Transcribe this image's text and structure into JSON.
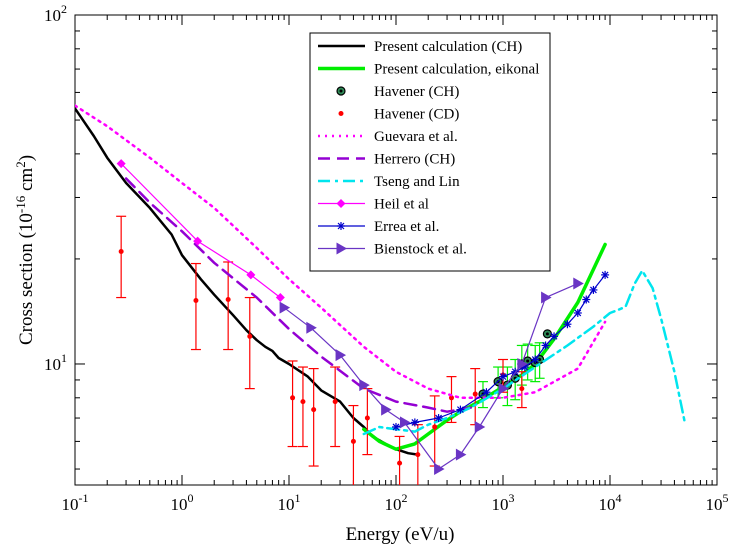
{
  "chart_data": {
    "type": "line",
    "xscale": "log",
    "yscale": "log",
    "xlim": [
      0.1,
      100000
    ],
    "ylim": [
      4.5,
      100
    ],
    "xlabel": "Energy (eV/u)",
    "ylabel_main": "Cross section (10",
    "ylabel_exp1": "-16",
    "ylabel_mid": " cm",
    "ylabel_exp2": "2",
    "ylabel_end": ")",
    "x_ticks": [
      {
        "v": 0.1,
        "base": "10",
        "exp": "-1"
      },
      {
        "v": 1,
        "base": "10",
        "exp": "0"
      },
      {
        "v": 10,
        "base": "10",
        "exp": "1"
      },
      {
        "v": 100,
        "base": "10",
        "exp": "2"
      },
      {
        "v": 1000,
        "base": "10",
        "exp": "3"
      },
      {
        "v": 10000,
        "base": "10",
        "exp": "4"
      },
      {
        "v": 100000,
        "base": "10",
        "exp": "5"
      }
    ],
    "y_ticks": [
      {
        "v": 10,
        "base": "10",
        "exp": "1"
      },
      {
        "v": 100,
        "base": "10",
        "exp": "2"
      }
    ],
    "series": [
      {
        "name": "Present calculation (CH)",
        "color": "#000000",
        "style": "solid",
        "width": 2.5,
        "marker": "none",
        "x": [
          0.1,
          0.15,
          0.2,
          0.3,
          0.5,
          0.8,
          1.0,
          1.5,
          2,
          3,
          4,
          5,
          6,
          7,
          8,
          10,
          15,
          20,
          30,
          40,
          50,
          60,
          80,
          100,
          130,
          160
        ],
        "y": [
          54,
          45,
          39,
          33,
          28,
          23.5,
          20.5,
          17.5,
          15.8,
          13.8,
          12.5,
          11.7,
          11.2,
          10.9,
          10.4,
          10.0,
          9.2,
          8.4,
          7.8,
          7.0,
          6.6,
          6.2,
          5.9,
          5.7,
          5.55,
          5.5
        ]
      },
      {
        "name": "Present calculation, eikonal",
        "color": "#00ee00",
        "style": "solid",
        "width": 3.5,
        "marker": "none",
        "x": [
          50,
          70,
          100,
          150,
          200,
          300,
          400,
          600,
          1000,
          1500,
          2000,
          3000,
          5000,
          9000
        ],
        "y": [
          6.5,
          6.0,
          5.7,
          5.9,
          6.3,
          6.9,
          7.3,
          7.8,
          8.6,
          9.3,
          10.0,
          11.8,
          15.0,
          22.0
        ]
      },
      {
        "name": "Havener (CH)",
        "color": "#000000",
        "style": "none",
        "marker": "circle-dot",
        "errcolor": "#00ee00",
        "x": [
          650,
          900,
          1100,
          1300,
          1500,
          1700,
          2000,
          2200,
          2600
        ],
        "y": [
          8.2,
          8.9,
          8.7,
          9.1,
          10.0,
          10.2,
          10.1,
          10.3,
          12.2
        ],
        "err": [
          0.7,
          0.9,
          1.1,
          1.2,
          1.3,
          1.2,
          1.2,
          1.2,
          0
        ]
      },
      {
        "name": "Havener (CD)",
        "color": "#ff0000",
        "style": "none",
        "marker": "dot",
        "errcolor": "#ff0000",
        "x": [
          0.27,
          1.35,
          2.7,
          4.3,
          10.8,
          13.5,
          17,
          27,
          40,
          54,
          108,
          160,
          230,
          330,
          550,
          1000,
          1500
        ],
        "y": [
          21,
          15.2,
          15.3,
          12.0,
          8.0,
          7.8,
          7.4,
          7.8,
          6.0,
          7.0,
          5.2,
          5.5,
          6.6,
          8.0,
          8.2,
          9.3,
          8.5
        ],
        "err": [
          5.5,
          4.2,
          4.3,
          3.5,
          2.2,
          2.0,
          2.3,
          2.0,
          1.6,
          1.5,
          1.0,
          1.2,
          1.5,
          1.2,
          1.5,
          1.0,
          1.0
        ]
      },
      {
        "name": "Guevara et al.",
        "color": "#ff00ff",
        "style": "dot",
        "width": 2.5,
        "marker": "none",
        "x": [
          0.1,
          0.2,
          0.5,
          1.0,
          2,
          5,
          10,
          20,
          50,
          100,
          200,
          400,
          1000,
          2000,
          5000,
          9000
        ],
        "y": [
          55,
          48,
          39,
          33,
          28,
          21.5,
          17.5,
          14.5,
          11.2,
          9.5,
          8.5,
          8.0,
          8.0,
          8.3,
          9.7,
          13.2
        ]
      },
      {
        "name": "Herrero (CH)",
        "color": "#9400d3",
        "style": "dash",
        "width": 2.5,
        "marker": "none",
        "x": [
          0.3,
          0.5,
          1.0,
          2,
          5,
          10,
          20,
          50,
          100,
          200,
          300,
          500
        ],
        "y": [
          34,
          29,
          24,
          19.5,
          15.5,
          12.6,
          10.5,
          8.5,
          7.8,
          7.5,
          7.3,
          7.5
        ]
      },
      {
        "name": "Tseng and Lin",
        "color": "#00e5ee",
        "style": "dashdot",
        "width": 2.5,
        "marker": "none",
        "x": [
          50,
          70,
          100,
          150,
          200,
          300,
          500,
          1000,
          2000,
          4000,
          7000,
          10000,
          12000,
          14000,
          17000,
          20000,
          25000,
          30000,
          40000,
          50000
        ],
        "y": [
          6.3,
          6.6,
          6.5,
          6.4,
          6.7,
          7.0,
          7.5,
          8.5,
          9.8,
          11.3,
          12.8,
          14.0,
          14.3,
          14.6,
          17.0,
          18.5,
          16.5,
          13.5,
          9.5,
          6.8
        ]
      },
      {
        "name": "Heil et al",
        "color": "#ff00ff",
        "style": "solid",
        "width": 1.2,
        "marker": "diamond",
        "x": [
          0.27,
          1.4,
          4.4,
          8.3
        ],
        "y": [
          37.5,
          22.5,
          18.0,
          15.5
        ]
      },
      {
        "name": "Errea et al.",
        "color": "#0000cc",
        "style": "solid",
        "width": 1.2,
        "marker": "asterisk",
        "x": [
          100,
          150,
          250,
          400,
          700,
          1000,
          1300,
          1600,
          2000,
          2500,
          3000,
          4000,
          5000,
          6000,
          7000,
          9000
        ],
        "y": [
          6.6,
          6.8,
          7.0,
          7.4,
          8.3,
          9.2,
          9.5,
          9.8,
          10.3,
          11.3,
          12.0,
          13.0,
          14.0,
          15.3,
          16.3,
          18.0
        ]
      },
      {
        "name": "Bienstock et al.",
        "color": "#6a35c4",
        "style": "solid",
        "width": 1.2,
        "marker": "triangle",
        "x": [
          9,
          16,
          30,
          50,
          80,
          120,
          250,
          400,
          600,
          1000,
          1500,
          2500,
          5000
        ],
        "y": [
          14.5,
          12.7,
          10.6,
          8.7,
          7.4,
          6.8,
          5.0,
          5.5,
          6.6,
          8.5,
          10.0,
          15.5,
          17.0
        ]
      }
    ]
  }
}
